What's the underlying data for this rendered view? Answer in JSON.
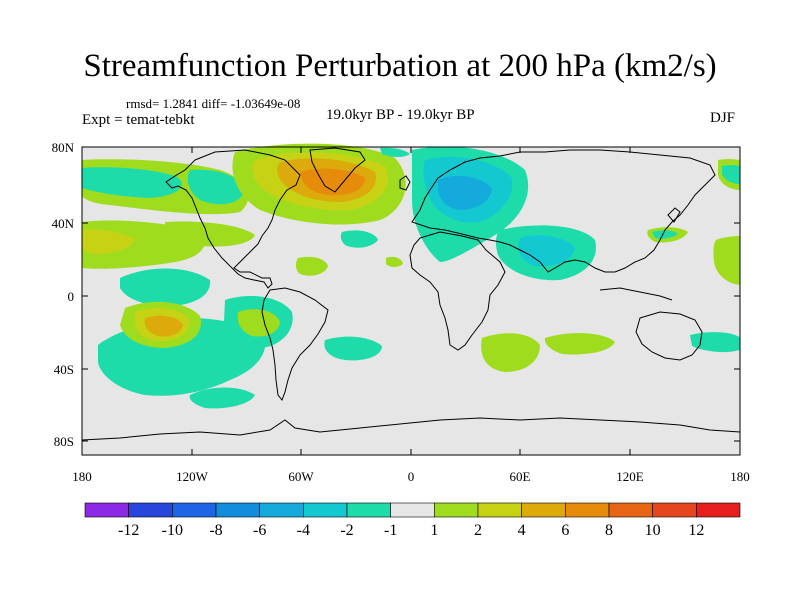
{
  "title": "Streamfunction Perturbation at 200 hPa (km2/s)",
  "stats": "rmsd= 1.2841 diff= -1.03649e-08",
  "experiment": "Expt = temat-tebkt",
  "period": "19.0kyr BP - 19.0kyr BP",
  "season": "DJF",
  "map": {
    "lat_ticks": [
      "80N",
      "40N",
      "0",
      "40S",
      "80S"
    ],
    "lon_ticks": [
      "180",
      "120W",
      "60W",
      "0",
      "60E",
      "120E",
      "180"
    ],
    "background_color": "#e6e6e6"
  },
  "colorbar": {
    "labels": [
      "-12",
      "-10",
      "-8",
      "-6",
      "-4",
      "-2",
      "-1",
      "1",
      "2",
      "4",
      "6",
      "8",
      "10",
      "12"
    ],
    "colors": [
      "#8c28e6",
      "#2846dc",
      "#1e64e6",
      "#148cdc",
      "#14aadc",
      "#14c8d2",
      "#1edcaa",
      "#e6e6e6",
      "#a0dc1e",
      "#c8d214",
      "#dcaa0a",
      "#e68c0a",
      "#e66414",
      "#e6461e",
      "#e61e1e"
    ]
  }
}
